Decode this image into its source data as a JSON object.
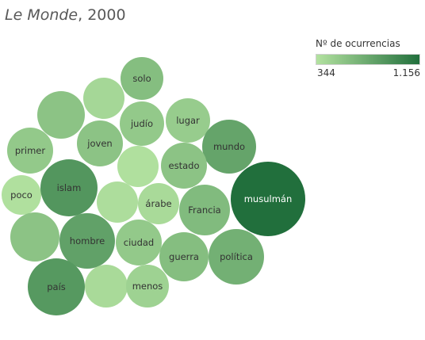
{
  "title": {
    "italic": "Le Monde",
    "rest": ", 2000"
  },
  "legend": {
    "title": "Nº de ocurrencias",
    "min_label": "344",
    "max_label": "1.156",
    "min_color": "#b3e2a0",
    "max_color": "#216f3c"
  },
  "chart_data": {
    "type": "packed-bubble",
    "title": "Le Monde, 2000",
    "color_measure": "Nº de ocurrencias",
    "color_range": [
      344,
      1156
    ],
    "bubbles": [
      {
        "label": "solo",
        "value": 600
      },
      {
        "label": "",
        "value": 420
      },
      {
        "label": "",
        "value": 560
      },
      {
        "label": "judío",
        "value": 520
      },
      {
        "label": "lugar",
        "value": 500
      },
      {
        "label": "primer",
        "value": 520
      },
      {
        "label": "joven",
        "value": 560
      },
      {
        "label": "mundo",
        "value": 780
      },
      {
        "label": "",
        "value": 360
      },
      {
        "label": "estado",
        "value": 560
      },
      {
        "label": "musulmán",
        "value": 1156
      },
      {
        "label": "poco",
        "value": 360
      },
      {
        "label": "islam",
        "value": 880
      },
      {
        "label": "",
        "value": 380
      },
      {
        "label": "árabe",
        "value": 400
      },
      {
        "label": "Francia",
        "value": 620
      },
      {
        "label": "",
        "value": 560
      },
      {
        "label": "hombre",
        "value": 800
      },
      {
        "label": "ciudad",
        "value": 520
      },
      {
        "label": "guerra",
        "value": 600
      },
      {
        "label": "política",
        "value": 700
      },
      {
        "label": "país",
        "value": 860
      },
      {
        "label": "",
        "value": 400
      },
      {
        "label": "menos",
        "value": 460
      }
    ]
  }
}
